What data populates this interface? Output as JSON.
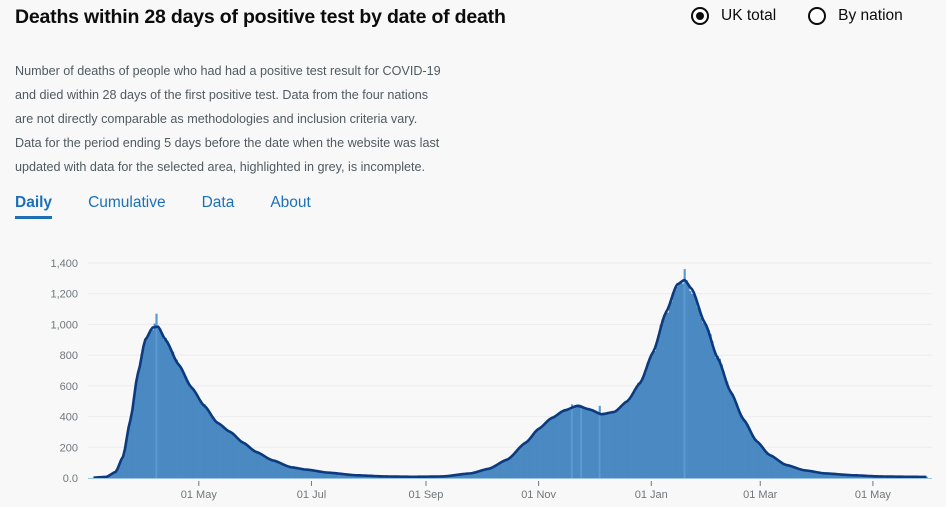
{
  "header": {
    "title": "Deaths within 28 days of positive test by date of death",
    "radio_options": [
      {
        "label": "UK total",
        "checked": true
      },
      {
        "label": "By nation",
        "checked": false
      }
    ]
  },
  "description": [
    "Number of deaths of people who had had a positive test result for COVID-19",
    "and died within 28 days of the first positive test. Data from the four nations",
    "are not directly comparable as methodologies and inclusion criteria vary.",
    "Data for the period ending 5 days before the date when the website was last",
    "updated with data for the selected area, highlighted in grey, is incomplete."
  ],
  "tabs": [
    {
      "label": "Daily",
      "active": true
    },
    {
      "label": "Cumulative",
      "active": false
    },
    {
      "label": "Data",
      "active": false
    },
    {
      "label": "About",
      "active": false
    }
  ],
  "colors": {
    "bar": "#4a89c2",
    "line": "#0b3a7e",
    "grid": "#ececec",
    "axis": "#6f777b",
    "accent": "#1d70b8"
  },
  "chart_data": {
    "type": "bar",
    "title": "Deaths within 28 days of positive test by date of death",
    "xlabel": "",
    "ylabel": "",
    "ylim": [
      0,
      1400
    ],
    "yticks": [
      0,
      200,
      400,
      600,
      800,
      1000,
      1200,
      1400
    ],
    "ytick_labels": [
      "0.0",
      "200",
      "400",
      "600",
      "800",
      "1,000",
      "1,200",
      "1,400"
    ],
    "xticks": [
      "2020-05-01",
      "2020-07-01",
      "2020-09-01",
      "2020-11-01",
      "2021-01-01",
      "2021-03-01",
      "2021-05-01"
    ],
    "xtick_labels": [
      "01 May",
      "01 Jul",
      "01 Sep",
      "01 Nov",
      "01 Jan",
      "01 Mar",
      "01 May"
    ],
    "x_range": [
      "2020-03-02",
      "2021-06-02"
    ],
    "grid": true,
    "series": [
      {
        "name": "Daily deaths",
        "style": "bars",
        "start_date": "2020-03-05",
        "anchors": [
          [
            "2020-03-05",
            2
          ],
          [
            "2020-03-12",
            8
          ],
          [
            "2020-03-17",
            40
          ],
          [
            "2020-03-21",
            140
          ],
          [
            "2020-03-25",
            380
          ],
          [
            "2020-03-29",
            680
          ],
          [
            "2020-04-02",
            900
          ],
          [
            "2020-04-06",
            980
          ],
          [
            "2020-04-09",
            985
          ],
          [
            "2020-04-13",
            900
          ],
          [
            "2020-04-20",
            740
          ],
          [
            "2020-04-27",
            590
          ],
          [
            "2020-05-04",
            470
          ],
          [
            "2020-05-11",
            360
          ],
          [
            "2020-05-18",
            300
          ],
          [
            "2020-05-25",
            230
          ],
          [
            "2020-06-01",
            170
          ],
          [
            "2020-06-10",
            115
          ],
          [
            "2020-06-20",
            70
          ],
          [
            "2020-06-28",
            55
          ],
          [
            "2020-07-10",
            35
          ],
          [
            "2020-07-25",
            18
          ],
          [
            "2020-08-10",
            10
          ],
          [
            "2020-08-25",
            8
          ],
          [
            "2020-09-10",
            10
          ],
          [
            "2020-09-25",
            30
          ],
          [
            "2020-10-05",
            60
          ],
          [
            "2020-10-15",
            120
          ],
          [
            "2020-10-25",
            230
          ],
          [
            "2020-11-01",
            320
          ],
          [
            "2020-11-08",
            390
          ],
          [
            "2020-11-15",
            440
          ],
          [
            "2020-11-22",
            470
          ],
          [
            "2020-11-29",
            445
          ],
          [
            "2020-12-05",
            415
          ],
          [
            "2020-12-12",
            430
          ],
          [
            "2020-12-19",
            500
          ],
          [
            "2020-12-26",
            620
          ],
          [
            "2021-01-02",
            820
          ],
          [
            "2021-01-09",
            1080
          ],
          [
            "2021-01-15",
            1260
          ],
          [
            "2021-01-19",
            1290
          ],
          [
            "2021-01-23",
            1230
          ],
          [
            "2021-01-30",
            1010
          ],
          [
            "2021-02-06",
            780
          ],
          [
            "2021-02-13",
            560
          ],
          [
            "2021-02-20",
            380
          ],
          [
            "2021-02-27",
            240
          ],
          [
            "2021-03-06",
            150
          ],
          [
            "2021-03-15",
            85
          ],
          [
            "2021-03-25",
            50
          ],
          [
            "2021-04-05",
            30
          ],
          [
            "2021-04-20",
            18
          ],
          [
            "2021-05-05",
            10
          ],
          [
            "2021-05-20",
            8
          ],
          [
            "2021-05-30",
            7
          ]
        ],
        "spikes": [
          [
            "2020-04-08",
            1070
          ],
          [
            "2021-01-19",
            1360
          ],
          [
            "2020-11-19",
            480
          ],
          [
            "2020-11-24",
            475
          ],
          [
            "2020-12-04",
            470
          ]
        ]
      },
      {
        "name": "7-day rolling average",
        "style": "line"
      }
    ]
  }
}
